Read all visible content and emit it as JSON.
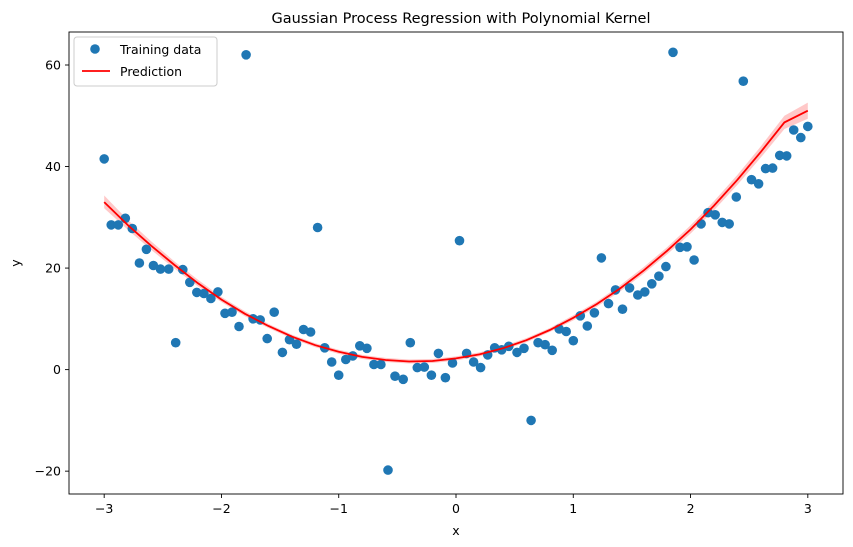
{
  "chart_data": {
    "type": "scatter",
    "title": "Gaussian Process Regression with Polynomial Kernel",
    "xlabel": "x",
    "ylabel": "y",
    "xlim": [
      -3.3,
      3.3
    ],
    "ylim": [
      -24.5,
      66.5
    ],
    "xticks": [
      -3,
      -2,
      -1,
      0,
      1,
      2,
      3
    ],
    "yticks": [
      -20,
      0,
      20,
      40,
      60
    ],
    "xtick_labels": [
      "−3",
      "−2",
      "−1",
      "0",
      "1",
      "2",
      "3"
    ],
    "ytick_labels": [
      "−20",
      "0",
      "20",
      "40",
      "60"
    ],
    "grid": false,
    "legend": {
      "position": "top-left",
      "entries": [
        {
          "label": "Training data",
          "kind": "marker"
        },
        {
          "label": "Prediction",
          "kind": "line"
        }
      ]
    },
    "colors": {
      "training": "#1f77b4",
      "prediction": "#ff0000",
      "band": "#ff9b9b"
    },
    "series": [
      {
        "name": "Training data",
        "kind": "scatter",
        "x": [
          -3.0,
          -2.94,
          -2.88,
          -2.82,
          -2.76,
          -2.7,
          -2.64,
          -2.58,
          -2.52,
          -2.45,
          -2.39,
          -2.33,
          -2.27,
          -2.21,
          -2.15,
          -2.09,
          -2.03,
          -1.97,
          -1.91,
          -1.85,
          -1.79,
          -1.73,
          -1.67,
          -1.61,
          -1.55,
          -1.48,
          -1.42,
          -1.36,
          -1.3,
          -1.24,
          -1.18,
          -1.12,
          -1.06,
          -1.0,
          -0.94,
          -0.88,
          -0.82,
          -0.76,
          -0.7,
          -0.64,
          -0.58,
          -0.52,
          -0.45,
          -0.39,
          -0.33,
          -0.27,
          -0.21,
          -0.15,
          -0.09,
          -0.03,
          0.03,
          0.09,
          0.15,
          0.21,
          0.27,
          0.33,
          0.39,
          0.45,
          0.52,
          0.58,
          0.64,
          0.7,
          0.76,
          0.82,
          0.88,
          0.94,
          1.0,
          1.06,
          1.12,
          1.18,
          1.24,
          1.3,
          1.36,
          1.42,
          1.48,
          1.55,
          1.61,
          1.67,
          1.73,
          1.79,
          1.85,
          1.91,
          1.97,
          2.03,
          2.09,
          2.15,
          2.21,
          2.27,
          2.33,
          2.39,
          2.45,
          2.52,
          2.58,
          2.64,
          2.7,
          2.76,
          2.82,
          2.88,
          2.94,
          3.0
        ],
        "y": [
          41.5,
          28.5,
          28.5,
          29.8,
          27.8,
          21.0,
          23.7,
          20.5,
          19.8,
          19.8,
          5.3,
          19.7,
          17.2,
          15.2,
          15.0,
          14.0,
          15.3,
          11.1,
          11.3,
          8.5,
          62.0,
          10.0,
          9.8,
          6.1,
          11.3,
          3.4,
          5.9,
          5.0,
          7.9,
          7.4,
          28.0,
          4.3,
          1.5,
          -1.1,
          2.0,
          2.7,
          4.7,
          4.2,
          1.0,
          1.0,
          -19.8,
          -1.3,
          -1.9,
          5.3,
          0.4,
          0.5,
          -1.1,
          3.2,
          -1.6,
          1.3,
          25.4,
          3.2,
          1.5,
          0.4,
          2.9,
          4.3,
          3.9,
          4.6,
          3.4,
          4.2,
          -10.0,
          5.3,
          4.9,
          3.8,
          8.0,
          7.5,
          5.7,
          10.6,
          8.6,
          11.2,
          22.0,
          13.0,
          15.7,
          11.9,
          16.1,
          14.7,
          15.3,
          16.9,
          18.4,
          20.3,
          62.5,
          24.1,
          24.2,
          21.6,
          28.7,
          30.9,
          30.5,
          29.0,
          28.7,
          34.0,
          56.8,
          37.4,
          36.6,
          39.6,
          39.7,
          42.2,
          42.1,
          47.2,
          45.7,
          47.9
        ]
      },
      {
        "name": "Prediction",
        "kind": "line",
        "x": [
          -3.0,
          -2.8,
          -2.6,
          -2.4,
          -2.2,
          -2.0,
          -1.8,
          -1.6,
          -1.4,
          -1.2,
          -1.0,
          -0.8,
          -0.6,
          -0.4,
          -0.2,
          0.0,
          0.2,
          0.4,
          0.6,
          0.8,
          1.0,
          1.2,
          1.4,
          1.6,
          1.8,
          2.0,
          2.2,
          2.4,
          2.6,
          2.8,
          3.0
        ],
        "y": [
          33.0,
          28.5,
          24.4,
          20.6,
          17.0,
          13.8,
          11.0,
          8.6,
          6.5,
          4.8,
          3.5,
          2.5,
          1.9,
          1.6,
          1.7,
          2.2,
          3.0,
          4.2,
          5.8,
          7.8,
          10.2,
          12.9,
          16.0,
          19.5,
          23.4,
          27.6,
          32.3,
          37.4,
          42.9,
          48.7,
          51.0
        ],
        "lower": [
          31.8,
          27.6,
          23.6,
          19.9,
          16.4,
          13.3,
          10.5,
          8.2,
          6.1,
          4.4,
          3.1,
          2.1,
          1.5,
          1.2,
          1.3,
          1.8,
          2.6,
          3.8,
          5.4,
          7.4,
          9.7,
          12.4,
          15.4,
          18.9,
          22.7,
          26.8,
          31.4,
          36.4,
          41.8,
          47.4,
          49.4
        ],
        "upper": [
          34.3,
          29.5,
          25.3,
          21.3,
          17.7,
          14.3,
          11.5,
          9.0,
          6.9,
          5.2,
          3.9,
          2.9,
          2.3,
          2.0,
          2.1,
          2.6,
          3.4,
          4.6,
          6.2,
          8.2,
          10.7,
          13.4,
          16.6,
          20.2,
          24.1,
          28.4,
          33.2,
          38.4,
          44.0,
          50.0,
          52.6
        ]
      }
    ]
  }
}
